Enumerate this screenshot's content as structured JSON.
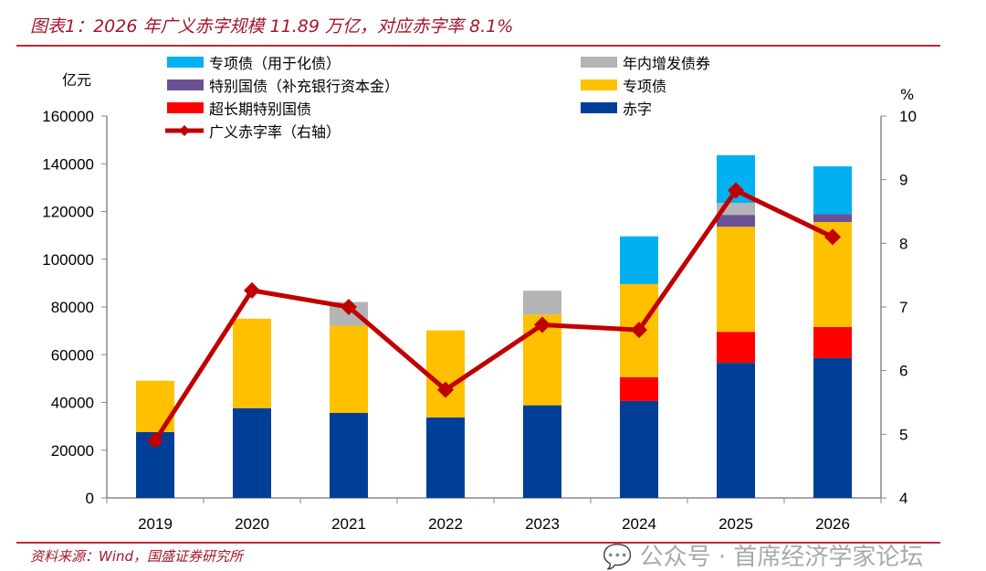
{
  "title": "图表1：2026 年广义赤字规模 11.89 万亿，对应赤字率 8.1%",
  "source": "资料来源：Wind，国盛证券研究所",
  "watermark": "公众号 · 首席经济学家论坛",
  "chart_data": {
    "type": "bar",
    "stacked": true,
    "categories": [
      "2019",
      "2020",
      "2021",
      "2022",
      "2023",
      "2024",
      "2025",
      "2026"
    ],
    "ylabel": "亿元",
    "ylabel_right": "%",
    "ylim": [
      0,
      160000
    ],
    "yticks": [
      0,
      20000,
      40000,
      60000,
      80000,
      100000,
      120000,
      140000,
      160000
    ],
    "ylim_right": [
      4,
      10
    ],
    "yticks_right": [
      4,
      5,
      6,
      7,
      8,
      9,
      10
    ],
    "series": [
      {
        "name": "赤字",
        "color": "#003f98",
        "values": [
          27600,
          37600,
          35600,
          33700,
          38800,
          40600,
          56600,
          58600
        ]
      },
      {
        "name": "超长期特别国债",
        "color": "#ff0000",
        "values": [
          0,
          0,
          0,
          0,
          0,
          10000,
          13000,
          13000
        ]
      },
      {
        "name": "专项债",
        "color": "#ffc000",
        "values": [
          21500,
          37500,
          36500,
          36500,
          38000,
          39000,
          44000,
          44000
        ]
      },
      {
        "name": "特别国债（补充银行资本金）",
        "color": "#6b5194",
        "values": [
          0,
          0,
          0,
          0,
          0,
          0,
          5000,
          3300
        ]
      },
      {
        "name": "年内增发债券",
        "color": "#b4b4b4",
        "values": [
          0,
          0,
          10000,
          0,
          10000,
          0,
          5000,
          0
        ]
      },
      {
        "name": "专项债（用于化债）",
        "color": "#00b0f0",
        "values": [
          0,
          0,
          0,
          0,
          0,
          20000,
          20000,
          20000
        ]
      }
    ],
    "line": {
      "name": "广义赤字率（右轴）",
      "color": "#c00000",
      "axis": "right",
      "values": [
        4.9,
        7.26,
        7.0,
        5.7,
        6.72,
        6.64,
        8.83,
        8.1
      ]
    },
    "legend": {
      "placement": "top",
      "items": [
        "专项债（用于化债）",
        "年内增发债券",
        "特别国债（补充银行资本金）",
        "专项债",
        "超长期特别国债",
        "赤字",
        "广义赤字率（右轴）"
      ]
    }
  }
}
